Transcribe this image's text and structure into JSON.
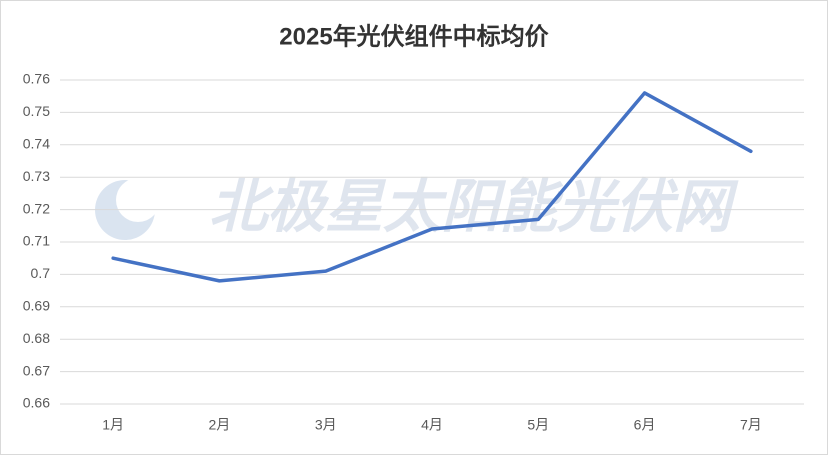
{
  "chart_data": {
    "type": "line",
    "title": "2025年光伏组件中标均价",
    "watermark": "北极星太阳能光伏网",
    "categories": [
      "1月",
      "2月",
      "3月",
      "4月",
      "5月",
      "6月",
      "7月"
    ],
    "values": [
      0.705,
      0.698,
      0.701,
      0.714,
      0.717,
      0.756,
      0.738
    ],
    "color": "#4472c4",
    "ylim": [
      0.66,
      0.76
    ],
    "yticks": [
      0.66,
      0.67,
      0.68,
      0.69,
      0.7,
      0.71,
      0.72,
      0.73,
      0.74,
      0.75,
      0.76
    ],
    "grid": true
  }
}
